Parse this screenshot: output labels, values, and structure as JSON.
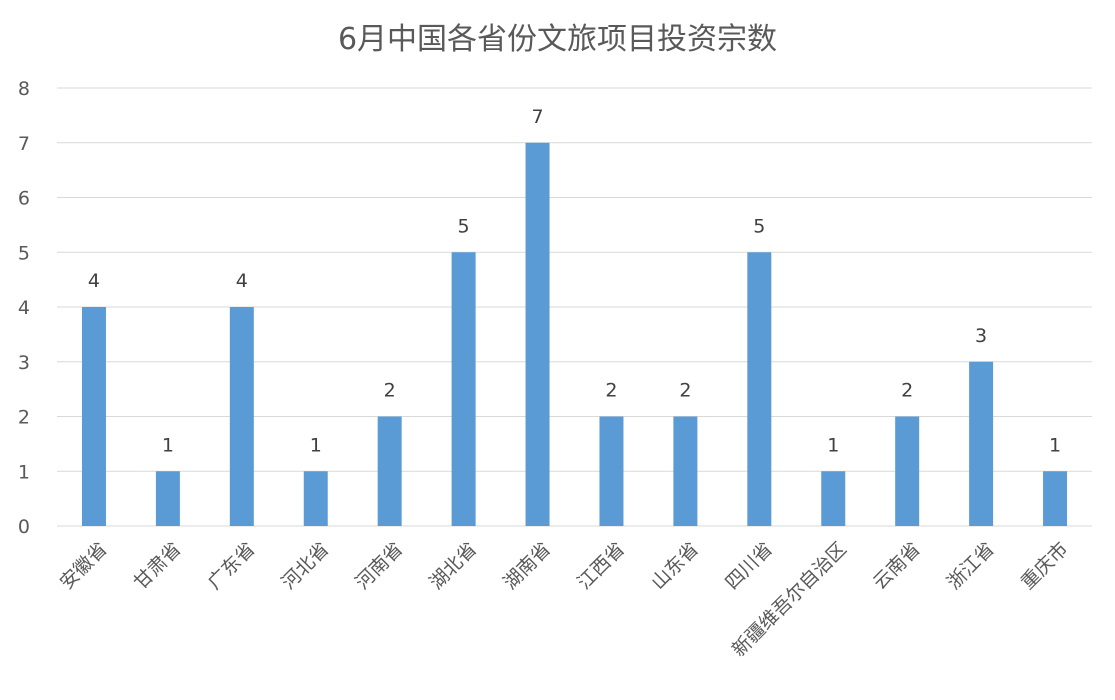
{
  "chart_data": {
    "type": "bar",
    "title": "6月中国各省份文旅项目投资宗数",
    "xlabel": "",
    "ylabel": "",
    "categories": [
      "安徽省",
      "甘肃省",
      "广东省",
      "河北省",
      "河南省",
      "湖北省",
      "湖南省",
      "江西省",
      "山东省",
      "四川省",
      "新疆维吾尔自治区",
      "云南省",
      "浙江省",
      "重庆市"
    ],
    "values": [
      4,
      1,
      4,
      1,
      2,
      5,
      7,
      2,
      2,
      5,
      1,
      2,
      3,
      1
    ],
    "ylim": [
      0,
      8
    ],
    "yticks": [
      0,
      1,
      2,
      3,
      4,
      5,
      6,
      7,
      8
    ],
    "grid": true,
    "legend": "none",
    "bar_color": "#5b9bd5",
    "data_labels": true
  }
}
